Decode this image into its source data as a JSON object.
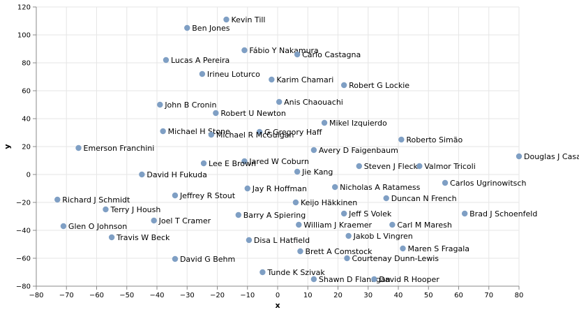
{
  "chart_data": {
    "type": "scatter",
    "title": "",
    "xlabel": "x",
    "ylabel": "y",
    "xlim": [
      -80,
      80
    ],
    "ylim": [
      -80,
      120
    ],
    "x_ticks": [
      -80,
      -70,
      -60,
      -50,
      -40,
      -30,
      -20,
      -10,
      0,
      10,
      20,
      30,
      40,
      50,
      60,
      70,
      80
    ],
    "y_ticks": [
      -80,
      -60,
      -40,
      -20,
      0,
      20,
      40,
      60,
      80,
      100,
      120
    ],
    "grid": true,
    "point_color": "#7f9fc4",
    "points": [
      {
        "label": "Kevin Till",
        "x": -17,
        "y": 111
      },
      {
        "label": "Ben Jones",
        "x": -30,
        "y": 105
      },
      {
        "label": "Fábio Y Nakamura",
        "x": -11,
        "y": 89
      },
      {
        "label": "Carlo Castagna",
        "x": 6.5,
        "y": 86
      },
      {
        "label": "Lucas A Pereira",
        "x": -37,
        "y": 82
      },
      {
        "label": "Irineu Loturco",
        "x": -25,
        "y": 72
      },
      {
        "label": "Karim Chamari",
        "x": -2,
        "y": 68
      },
      {
        "label": "Robert G Lockie",
        "x": 22,
        "y": 64
      },
      {
        "label": "Anis Chaouachi",
        "x": 0.5,
        "y": 52
      },
      {
        "label": "John B Cronin",
        "x": -39,
        "y": 50
      },
      {
        "label": "Robert U Newton",
        "x": -20.5,
        "y": 44
      },
      {
        "label": "Mikel Izquierdo",
        "x": 15.5,
        "y": 37
      },
      {
        "label": "Michael H Stone",
        "x": -38,
        "y": 31
      },
      {
        "label": "G Gregory Haff",
        "x": -6,
        "y": 30.5
      },
      {
        "label": "Michael R McGuigan",
        "x": -22,
        "y": 28.5
      },
      {
        "label": "Roberto Simão",
        "x": 41,
        "y": 25
      },
      {
        "label": "Emerson Franchini",
        "x": -66,
        "y": 19
      },
      {
        "label": "Avery D Faigenbaum",
        "x": 12,
        "y": 17.5
      },
      {
        "label": "Douglas J Casa",
        "x": 80,
        "y": 13
      },
      {
        "label": "Jared W Coburn",
        "x": -11,
        "y": 9.5
      },
      {
        "label": "Lee E Brown",
        "x": -24.5,
        "y": 8
      },
      {
        "label": "Steven J Fleck",
        "x": 27,
        "y": 6
      },
      {
        "label": "Valmor Tricoli",
        "x": 47,
        "y": 6
      },
      {
        "label": "Jie Kang",
        "x": 6.5,
        "y": 2
      },
      {
        "label": "David H Fukuda",
        "x": -45,
        "y": 0
      },
      {
        "label": "Carlos Ugrinowitsch",
        "x": 55.5,
        "y": -6
      },
      {
        "label": "Jay R Hoffman",
        "x": -10,
        "y": -10
      },
      {
        "label": "Nicholas A Ratamess",
        "x": 19,
        "y": -9
      },
      {
        "label": "Jeffrey R Stout",
        "x": -34,
        "y": -15
      },
      {
        "label": "Duncan N French",
        "x": 36,
        "y": -17
      },
      {
        "label": "Richard J Schmidt",
        "x": -73,
        "y": -18
      },
      {
        "label": "Keijo Häkkinen",
        "x": 6,
        "y": -20
      },
      {
        "label": "Terry J Housh",
        "x": -57,
        "y": -25
      },
      {
        "label": "Barry A Spiering",
        "x": -13,
        "y": -29
      },
      {
        "label": "Jeff S Volek",
        "x": 22,
        "y": -28
      },
      {
        "label": "Brad J Schoenfeld",
        "x": 62,
        "y": -28
      },
      {
        "label": "Joel T Cramer",
        "x": -41,
        "y": -33
      },
      {
        "label": "Glen O Johnson",
        "x": -71,
        "y": -37
      },
      {
        "label": "William J Kraemer",
        "x": 7,
        "y": -36
      },
      {
        "label": "Carl M Maresh",
        "x": 38,
        "y": -36
      },
      {
        "label": "Jakob L Vingren",
        "x": 23.5,
        "y": -44
      },
      {
        "label": "Travis W Beck",
        "x": -55,
        "y": -45
      },
      {
        "label": "Disa L Hatfield",
        "x": -9.5,
        "y": -47
      },
      {
        "label": "Maren S Fragala",
        "x": 41.5,
        "y": -53
      },
      {
        "label": "Brett A Comstock",
        "x": 7.5,
        "y": -55
      },
      {
        "label": "Courtenay Dunn-Lewis",
        "x": 23,
        "y": -60
      },
      {
        "label": "David G Behm",
        "x": -34,
        "y": -60.5
      },
      {
        "label": "Tunde K Szivak",
        "x": -5,
        "y": -70
      },
      {
        "label": "Shawn D Flanagan",
        "x": 12,
        "y": -75
      },
      {
        "label": "David R Hooper",
        "x": 32,
        "y": -75
      }
    ]
  }
}
